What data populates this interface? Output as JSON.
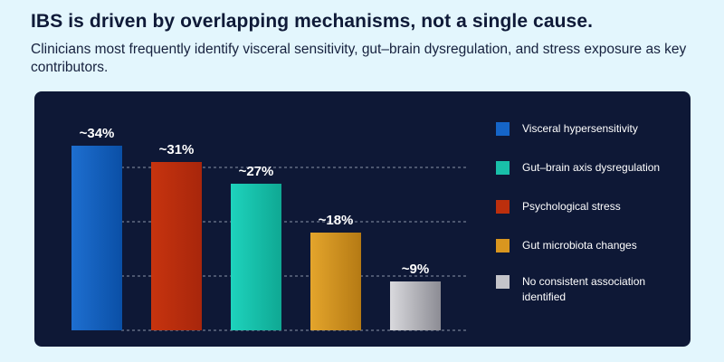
{
  "header": {
    "title": "IBS is driven by overlapping mechanisms, not a single cause.",
    "subtitle": "Clinicians most frequently identify visceral sensitivity, gut–brain dysregulation, and stress exposure as key contributors."
  },
  "colors": {
    "page_background": "#e3f6fd",
    "panel_background": "#0e1836",
    "grid": "#8a93a8",
    "label_text": "#ffffff"
  },
  "chart_data": {
    "type": "bar",
    "title": "IBS is driven by overlapping mechanisms, not a single cause.",
    "categories": [
      "Visceral hypersensitivity",
      "Psychological stress",
      "Gut–brain axis dysregulation",
      "Gut microbiota changes",
      "No consistent association identified"
    ],
    "values": [
      34,
      31,
      27,
      18,
      9
    ],
    "value_labels": [
      "~34%",
      "~31%",
      "~27%",
      "~18%",
      "~9%"
    ],
    "ylim": [
      0,
      38
    ],
    "gridlines": [
      10,
      20,
      30
    ],
    "grid": true,
    "xlabel": "",
    "ylabel": "",
    "legend_position": "right",
    "bar_colors": [
      [
        "#1e6fd0",
        "#0a4fa6"
      ],
      [
        "#c7340e",
        "#a8260c"
      ],
      [
        "#1ed3bd",
        "#0fa893"
      ],
      [
        "#e4a52c",
        "#b57a14"
      ],
      [
        "#d9d9dd",
        "#8c8c94"
      ]
    ]
  },
  "legend": {
    "items": [
      {
        "label": "Visceral hypersensitivity",
        "color": "#1565c8"
      },
      {
        "label": "Gut–brain axis dysregulation",
        "color": "#19bfa9"
      },
      {
        "label": "Psychological stress",
        "color": "#bc2f0d"
      },
      {
        "label": "Gut microbiota changes",
        "color": "#d9961f"
      },
      {
        "label": "No consistent association identified",
        "color": "#c4c4ca"
      }
    ]
  }
}
